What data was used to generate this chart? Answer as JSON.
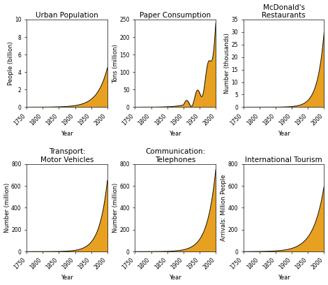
{
  "subplots": [
    {
      "title": "Urban Population",
      "ylabel": "People (billion)",
      "xlabel": "Year",
      "ylim": [
        0,
        10
      ],
      "yticks": [
        0,
        2,
        4,
        6,
        8,
        10
      ],
      "exponent": 8.0,
      "y_max_value": 4.5,
      "has_wiggle": false
    },
    {
      "title": "Paper Consumption",
      "ylabel": "Tons (million)",
      "xlabel": "Year",
      "ylim": [
        0,
        250
      ],
      "yticks": [
        0,
        50,
        100,
        150,
        200,
        250
      ],
      "exponent": 9.0,
      "y_max_value": 240,
      "has_wiggle": true,
      "wiggle_start": 1900,
      "wiggle_amplitude": 8,
      "wiggle_freq": 3
    },
    {
      "title": "McDonald's\nRestaurants",
      "ylabel": "Number (thousands)",
      "xlabel": "Year",
      "ylim": [
        0,
        35
      ],
      "yticks": [
        0,
        5,
        10,
        15,
        20,
        25,
        30,
        35
      ],
      "exponent": 12.0,
      "y_max_value": 30,
      "has_wiggle": false
    },
    {
      "title": "Transport:\nMotor Vehicles",
      "ylabel": "Number (million)",
      "xlabel": "Year",
      "ylim": [
        0,
        800
      ],
      "yticks": [
        0,
        200,
        400,
        600,
        800
      ],
      "exponent": 10.0,
      "y_max_value": 650,
      "has_wiggle": false
    },
    {
      "title": "Communication:\nTelephones",
      "ylabel": "Number (million)",
      "xlabel": "Year",
      "ylim": [
        0,
        800
      ],
      "yticks": [
        0,
        200,
        400,
        600,
        800
      ],
      "exponent": 9.5,
      "y_max_value": 750,
      "has_wiggle": false
    },
    {
      "title": "International Tourism",
      "ylabel": "Arrivals: Million People",
      "xlabel": "Year",
      "ylim": [
        0,
        800
      ],
      "yticks": [
        0,
        200,
        400,
        600,
        800
      ],
      "exponent": 7.5,
      "y_max_value": 600,
      "has_wiggle": false
    }
  ],
  "fill_color": "#E8A020",
  "line_color": "#111111",
  "background_color": "#ffffff",
  "x_start": 1750,
  "x_end": 2000,
  "xticks": [
    1750,
    1800,
    1850,
    1900,
    1950,
    2000
  ],
  "title_fontsize": 7.5,
  "label_fontsize": 6.0,
  "tick_fontsize": 5.5
}
